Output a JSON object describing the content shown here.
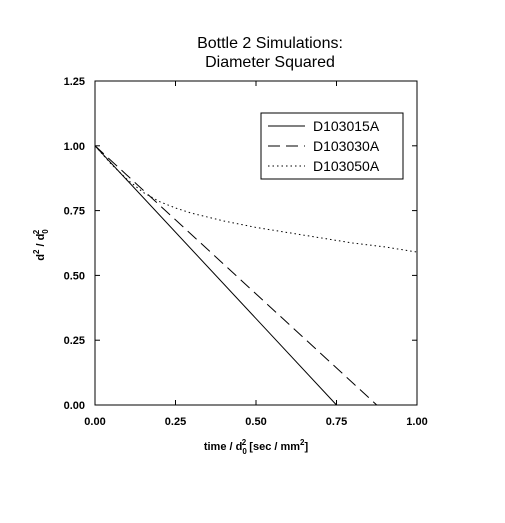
{
  "chart_data": {
    "type": "line",
    "title": [
      "Bottle 2 Simulations:",
      "Diameter Squared"
    ],
    "xlabel": {
      "main": "time / d",
      "sub": "0",
      "sup": "2",
      "rest": " [sec / mm",
      "rest_sup": "2",
      "end": "]"
    },
    "ylabel": {
      "main": "d",
      "sup": "2",
      "mid": " / d",
      "sub": "0",
      "sup2": "2"
    },
    "xlim": [
      0,
      1
    ],
    "ylim": [
      0,
      1.25
    ],
    "xticks": [
      0,
      0.25,
      0.5,
      0.75,
      1.0
    ],
    "xtick_labels": [
      "0.00",
      "0.25",
      "0.50",
      "0.75",
      "1.00"
    ],
    "yticks": [
      0,
      0.25,
      0.5,
      0.75,
      1.0,
      1.25
    ],
    "ytick_labels": [
      "0.00",
      "0.25",
      "0.50",
      "0.75",
      "1.00",
      "1.25"
    ],
    "grid": false,
    "legend_position": "top-right",
    "series": [
      {
        "name": "D103015A",
        "dash": "solid",
        "x": [
          0,
          0.75
        ],
        "y": [
          1.0,
          0.0
        ]
      },
      {
        "name": "D103030A",
        "dash": "dashed",
        "x": [
          0,
          0.875
        ],
        "y": [
          1.0,
          0.0
        ]
      },
      {
        "name": "D103050A",
        "dash": "dotted",
        "x": [
          0,
          0.05,
          0.1,
          0.15,
          0.2,
          0.25,
          0.3,
          0.4,
          0.5,
          0.6,
          0.7,
          0.8,
          0.9,
          1.0
        ],
        "y": [
          1.0,
          0.93,
          0.87,
          0.82,
          0.785,
          0.76,
          0.74,
          0.71,
          0.685,
          0.665,
          0.645,
          0.625,
          0.61,
          0.59
        ]
      }
    ]
  }
}
